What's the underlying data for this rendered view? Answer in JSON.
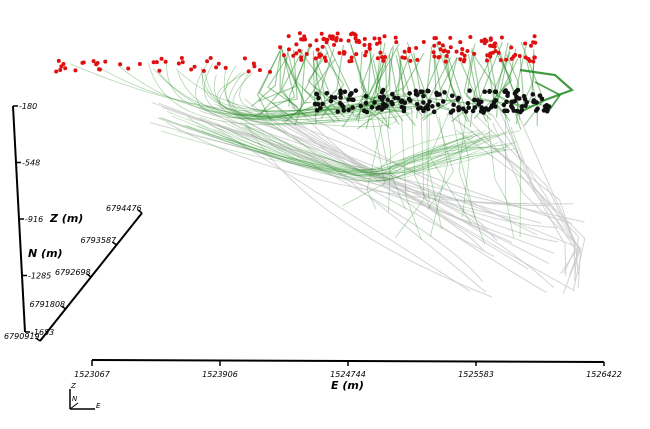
{
  "chart_data": {
    "type": "scatter",
    "title": "",
    "render": "3D well trajectories with collar and target markers",
    "axes": {
      "x": {
        "label": "E (m)",
        "ticks": [
          "1523067",
          "1523906",
          "1524744",
          "1525583",
          "1526422"
        ],
        "range": [
          1523067,
          1526422
        ]
      },
      "y": {
        "label": "N (m)",
        "ticks": [
          "6790919",
          "6791808",
          "6792698",
          "6793587",
          "6794476"
        ],
        "range": [
          6790919,
          6794476
        ]
      },
      "z": {
        "label": "Z (m)",
        "ticks": [
          "-180",
          "-548",
          "-916",
          "-1285",
          "-1653"
        ],
        "range": [
          -1653,
          -180
        ]
      }
    },
    "orientation_triad": {
      "z": "Z",
      "n": "N",
      "e": "E"
    },
    "colors": {
      "trace": "#1f8a1f",
      "trace_faint": "#c9c9c9",
      "collar": "#e01010",
      "endpoint": "#111111"
    },
    "grid": false,
    "legend": "none"
  }
}
